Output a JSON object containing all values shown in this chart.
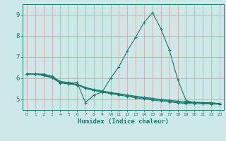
{
  "xlabel": "Humidex (Indice chaleur)",
  "ylabel": "",
  "bg_color": "#cce8e8",
  "grid_color": "#e8a0a0",
  "line_color": "#1a7a6e",
  "xlim": [
    -0.5,
    23.5
  ],
  "ylim": [
    4.5,
    9.5
  ],
  "xticks": [
    0,
    1,
    2,
    3,
    4,
    5,
    6,
    7,
    8,
    9,
    10,
    11,
    12,
    13,
    14,
    15,
    16,
    17,
    18,
    19,
    20,
    21,
    22,
    23
  ],
  "yticks": [
    5,
    6,
    7,
    8,
    9
  ],
  "line1": [
    6.2,
    6.2,
    6.2,
    6.1,
    5.85,
    5.8,
    5.8,
    4.85,
    5.2,
    5.35,
    6.0,
    6.55,
    7.3,
    7.95,
    8.65,
    9.1,
    8.35,
    7.35,
    5.95,
    4.95,
    4.85,
    4.85,
    4.85,
    4.8
  ],
  "line2": [
    6.2,
    6.2,
    6.15,
    6.05,
    5.8,
    5.75,
    5.7,
    5.55,
    5.45,
    5.38,
    5.3,
    5.25,
    5.18,
    5.12,
    5.07,
    5.02,
    4.97,
    4.93,
    4.88,
    4.85,
    4.85,
    4.82,
    4.8,
    4.78
  ],
  "line3": [
    6.2,
    6.2,
    6.12,
    6.02,
    5.78,
    5.73,
    5.68,
    5.52,
    5.42,
    5.35,
    5.27,
    5.21,
    5.14,
    5.08,
    5.02,
    4.97,
    4.92,
    4.88,
    4.84,
    4.81,
    4.8,
    4.79,
    4.78,
    4.77
  ],
  "line4": [
    6.2,
    6.2,
    6.18,
    6.08,
    5.82,
    5.77,
    5.72,
    5.57,
    5.47,
    5.4,
    5.33,
    5.27,
    5.21,
    5.15,
    5.1,
    5.05,
    5.0,
    4.96,
    4.92,
    4.88,
    4.87,
    4.85,
    4.82,
    4.8
  ],
  "figsize": [
    3.2,
    2.0
  ],
  "dpi": 100
}
